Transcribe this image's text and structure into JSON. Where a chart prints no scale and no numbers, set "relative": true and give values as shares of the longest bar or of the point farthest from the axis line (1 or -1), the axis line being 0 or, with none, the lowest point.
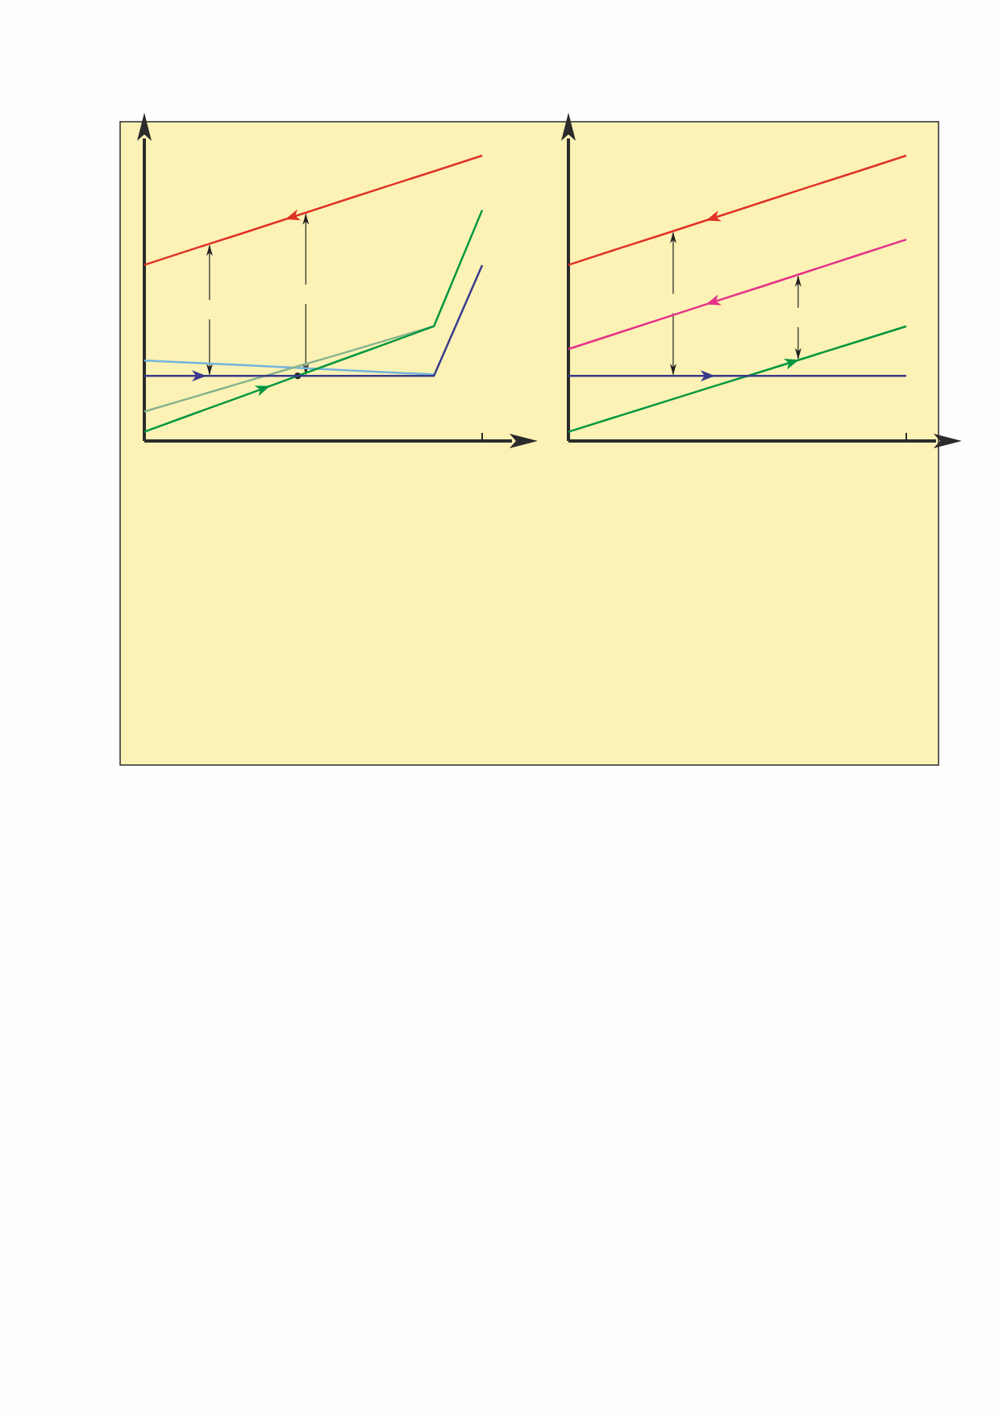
{
  "chart_data": [
    {
      "type": "line",
      "relative": true,
      "categories": [
        null,
        null,
        null,
        null,
        null,
        null,
        null,
        null
      ],
      "marker": "none",
      "line_style": "solid",
      "series": [
        {
          "color": "#e03127",
          "values": [
            0.617,
            0.672,
            0.726,
            0.781,
            0.836,
            0.891,
            0.945,
            1.0
          ]
        },
        {
          "color": "#74b4dc",
          "values": [
            0.282,
            0.274,
            0.266,
            0.258,
            0.249,
            0.241,
            0.233,
            null
          ]
        },
        {
          "color": "#86b48c",
          "values": [
            0.103,
            0.153,
            0.203,
            0.253,
            0.302,
            0.352,
            0.402,
            null
          ]
        },
        {
          "color": "#00963f",
          "values": [
            0.032,
            0.094,
            0.155,
            0.217,
            0.279,
            0.34,
            0.402,
            0.809
          ]
        },
        {
          "color": "#3a3a8c",
          "values": [
            0.228,
            0.228,
            0.228,
            0.228,
            0.228,
            0.228,
            0.228,
            0.616
          ]
        }
      ]
    },
    {
      "type": "line",
      "relative": true,
      "categories": [
        null,
        null,
        null,
        null,
        null,
        null,
        null,
        null
      ],
      "marker": "none",
      "line_style": "solid",
      "series": [
        {
          "color": "#e03127",
          "values": [
            0.617,
            0.672,
            0.726,
            0.781,
            0.836,
            0.891,
            0.945,
            1.0
          ]
        },
        {
          "color": "#e6308a",
          "values": [
            0.322,
            0.377,
            0.432,
            0.487,
            0.541,
            0.596,
            0.651,
            0.706
          ]
        },
        {
          "color": "#00963f",
          "values": [
            0.032,
            0.085,
            0.138,
            0.191,
            0.243,
            0.296,
            0.349,
            0.402
          ]
        },
        {
          "color": "#3a3a8c",
          "values": [
            0.228,
            0.228,
            0.228,
            0.228,
            0.228,
            0.228,
            0.228,
            0.228
          ]
        }
      ]
    }
  ]
}
